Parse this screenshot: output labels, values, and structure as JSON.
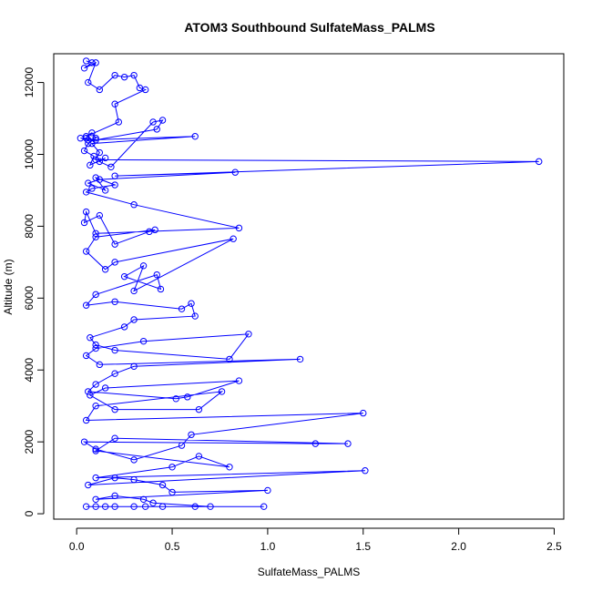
{
  "chart_data": {
    "type": "line",
    "title": "ATOM3 Southbound SulfateMass_PALMS",
    "xlabel": "SulfateMass_PALMS",
    "ylabel": "Altitude (m)",
    "xlim": [
      -0.12,
      2.55
    ],
    "ylim": [
      -150,
      12800
    ],
    "xticks": [
      0.0,
      0.5,
      1.0,
      1.5,
      2.0,
      2.5
    ],
    "xtick_labels": [
      "0.0",
      "0.5",
      "1.0",
      "1.5",
      "2.0",
      "2.5"
    ],
    "yticks": [
      0,
      2000,
      4000,
      6000,
      8000,
      10000,
      12000
    ],
    "ytick_labels": [
      "0",
      "2000",
      "4000",
      "6000",
      "8000",
      "10000",
      "12000"
    ],
    "grid": false,
    "series_color": "#0000ff",
    "marker": "open-circle",
    "series": [
      {
        "x": [
          0.05,
          0.08,
          0.04,
          0.1,
          0.06,
          0.12,
          0.2,
          0.25,
          0.3,
          0.33,
          0.36,
          0.2,
          0.22,
          0.05,
          0.08,
          0.1,
          0.06,
          0.04,
          0.09,
          0.07,
          0.15,
          0.12,
          0.18,
          0.4,
          0.45,
          0.42,
          0.1,
          0.05,
          0.02,
          0.06,
          0.62,
          0.08,
          0.12,
          0.1,
          2.42,
          0.2,
          0.83,
          0.12,
          0.06,
          0.15,
          0.1,
          0.2,
          0.08,
          0.05,
          0.3,
          0.85,
          0.1,
          0.05,
          0.04,
          0.12,
          0.2,
          0.38,
          0.41,
          0.1,
          0.05,
          0.15,
          0.2,
          0.82,
          0.3,
          0.35,
          0.25,
          0.44,
          0.42,
          0.1,
          0.05,
          0.2,
          0.55,
          0.6,
          0.62,
          0.3,
          0.25,
          0.07,
          0.1,
          0.2,
          0.8,
          0.9,
          0.35,
          0.1,
          0.05,
          0.12,
          1.17,
          0.3,
          0.2,
          0.1,
          0.06,
          0.52,
          0.58,
          0.85,
          0.15,
          0.07,
          0.2,
          0.64,
          0.76,
          0.1,
          0.05,
          1.5,
          0.6,
          0.55,
          0.3,
          0.1,
          0.04,
          1.25,
          1.42,
          0.2,
          0.1,
          0.8,
          0.64,
          0.5,
          0.1,
          1.51,
          0.06,
          0.2,
          0.3,
          0.45,
          0.5,
          1.0,
          0.1,
          0.2,
          0.35,
          0.4,
          0.7,
          0.98,
          0.05,
          0.1,
          0.15,
          0.2,
          0.3,
          0.36,
          0.45,
          0.62
        ],
        "y": [
          12600,
          12550,
          12400,
          12550,
          12000,
          11800,
          12200,
          12150,
          12200,
          11850,
          11800,
          11400,
          10900,
          10500,
          10600,
          10450,
          10300,
          10100,
          9950,
          9700,
          9900,
          9800,
          9650,
          10900,
          10950,
          10700,
          10400,
          10450,
          10450,
          10400,
          10500,
          10300,
          10050,
          9850,
          9800,
          9400,
          9500,
          9300,
          9200,
          9000,
          9350,
          9150,
          9050,
          8950,
          8600,
          7950,
          7800,
          8400,
          8100,
          8300,
          7500,
          7850,
          7900,
          7700,
          7300,
          6800,
          7000,
          7650,
          6200,
          6900,
          6600,
          6250,
          6650,
          6100,
          5800,
          5900,
          5700,
          5850,
          5500,
          5400,
          5200,
          4900,
          4700,
          4550,
          4300,
          5000,
          4800,
          4600,
          4400,
          4150,
          4300,
          4100,
          3900,
          3600,
          3400,
          3200,
          3250,
          3700,
          3500,
          3300,
          2900,
          2900,
          3400,
          3000,
          2600,
          2800,
          2200,
          1900,
          1500,
          1800,
          2000,
          1950,
          1950,
          2100,
          1750,
          1300,
          1600,
          1300,
          1000,
          1200,
          800,
          1000,
          950,
          800,
          600,
          650,
          400,
          500,
          400,
          300,
          200,
          200,
          200,
          200,
          200,
          200,
          200,
          200,
          200,
          200
        ],
        "data_labels": [],
        "name": ""
      }
    ],
    "legend": "none"
  }
}
